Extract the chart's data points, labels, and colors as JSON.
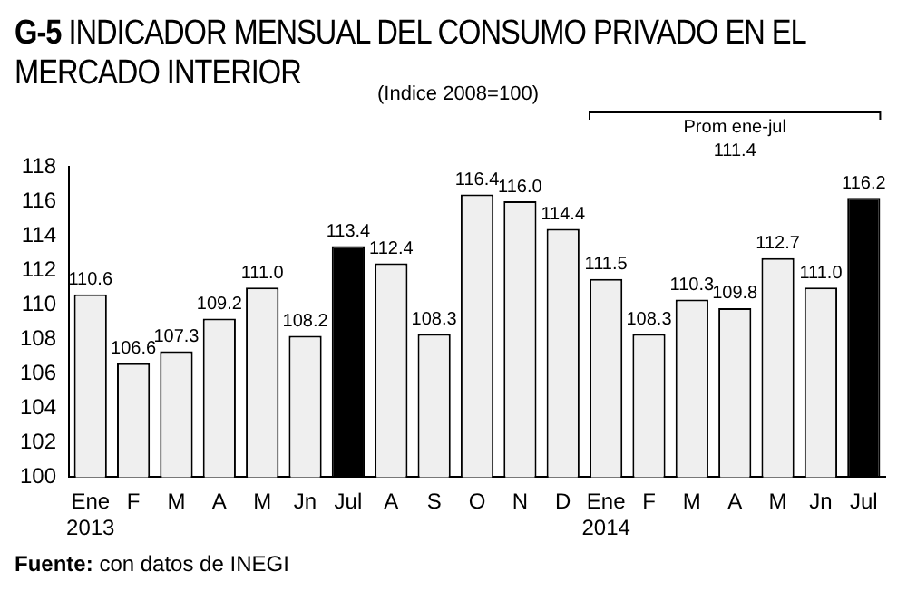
{
  "chart_data": {
    "type": "bar",
    "title": "G-5 INDICADOR MENSUAL DEL CONSUMO PRIVADO EN EL MERCADO INTERIOR",
    "subtitle": "(Indice 2008=100)",
    "categories": [
      "Ene 2013",
      "F",
      "M",
      "A",
      "M",
      "Jn",
      "Jul",
      "A",
      "S",
      "O",
      "N",
      "D",
      "Ene 2014",
      "F",
      "M",
      "A",
      "M",
      "Jn",
      "Jul"
    ],
    "values": [
      110.6,
      106.6,
      107.3,
      109.2,
      111.0,
      108.2,
      113.4,
      112.4,
      108.3,
      116.4,
      116.0,
      114.4,
      111.5,
      108.3,
      110.3,
      109.8,
      112.7,
      111.0,
      116.2
    ],
    "colors": [
      "#efefef",
      "#efefef",
      "#efefef",
      "#efefef",
      "#efefef",
      "#efefef",
      "#000000",
      "#efefef",
      "#efefef",
      "#efefef",
      "#efefef",
      "#efefef",
      "#efefef",
      "#efefef",
      "#efefef",
      "#efefef",
      "#efefef",
      "#efefef",
      "#000000"
    ],
    "value_labels": [
      "110.6",
      "106.6",
      "107.3",
      "109.2",
      "111.0",
      "108.2",
      "113.4",
      "112.4",
      "108.3",
      "116.4",
      "116.0",
      "114.4",
      "111.5",
      "108.3",
      "110.3",
      "109.8",
      "112.7",
      "111.0",
      "116.2"
    ],
    "ylim": [
      100,
      118
    ],
    "yticks": [
      100,
      102,
      104,
      106,
      108,
      110,
      112,
      114,
      116,
      118
    ],
    "grid": false,
    "legend": false,
    "annotations": [
      "Prom ene-jul 111.4",
      "Fuente: con datos de INEGI"
    ]
  }
}
